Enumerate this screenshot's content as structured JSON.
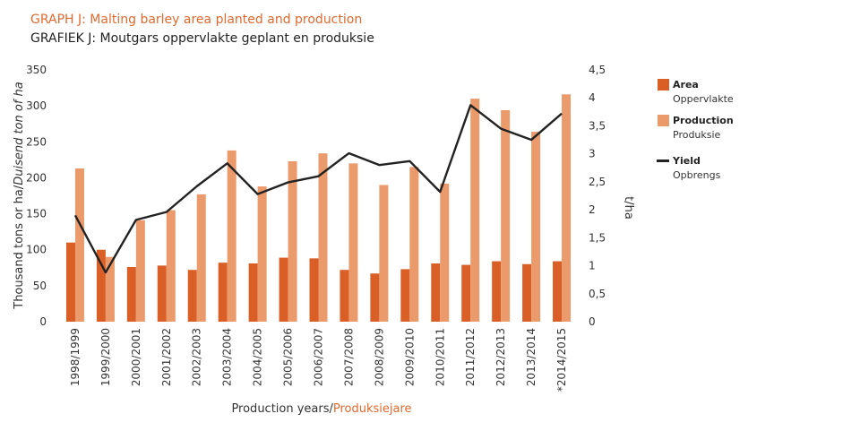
{
  "title_en": "GRAPH J: Malting barley area planted and production",
  "title_af": "GRAFIEK J: Moutgars oppervlakte geplant en produksie",
  "colors": {
    "area": "#d95f27",
    "production": "#eb9a6c",
    "yield": "#222222",
    "title_accent": "#e06a2e"
  },
  "chart_data": {
    "type": "bar",
    "categories": [
      "1998/1999",
      "1999/2000",
      "2000/2001",
      "2001/2002",
      "2002/2003",
      "2003/2004",
      "2004/2005",
      "2005/2006",
      "2006/2007",
      "2007/2008",
      "2008/2009",
      "2009/2010",
      "2010/2011",
      "2011/2012",
      "2012/2013",
      "2013/2014",
      "*2014/2015"
    ],
    "series": [
      {
        "name": "Area",
        "name_af": "Oppervlakte",
        "kind": "bar",
        "axis": "left",
        "values": [
          110,
          100,
          76,
          78,
          72,
          82,
          81,
          89,
          88,
          72,
          67,
          73,
          81,
          79,
          84,
          80,
          84
        ]
      },
      {
        "name": "Production",
        "name_af": "Produksie",
        "kind": "bar",
        "axis": "left",
        "values": [
          213,
          90,
          141,
          155,
          177,
          238,
          188,
          223,
          234,
          220,
          190,
          215,
          192,
          310,
          294,
          264,
          316
        ]
      },
      {
        "name": "Yield",
        "name_af": "Opbrengs",
        "kind": "line",
        "axis": "right",
        "values": [
          1.9,
          0.88,
          1.82,
          1.96,
          2.42,
          2.83,
          2.28,
          2.49,
          2.6,
          3.01,
          2.8,
          2.87,
          2.32,
          3.87,
          3.45,
          3.25,
          3.72
        ]
      }
    ],
    "ylim_left": [
      0,
      350
    ],
    "yticks_left": [
      "0",
      "50",
      "100",
      "150",
      "200",
      "250",
      "300",
      "350"
    ],
    "ylim_right": [
      0,
      4.5
    ],
    "yticks_right": [
      "0",
      "0,5",
      "1",
      "1,5",
      "2",
      "2,5",
      "3",
      "3,5",
      "4",
      "4,5"
    ],
    "ylabel_left_plain": "Thousand tons or ha/",
    "ylabel_left_italic": "Duisend ton of ha",
    "ylabel_right": "t/ha",
    "xlabel_en": "Production years/",
    "xlabel_af": "Produksiejare",
    "legend_position": "right",
    "grid": false
  }
}
